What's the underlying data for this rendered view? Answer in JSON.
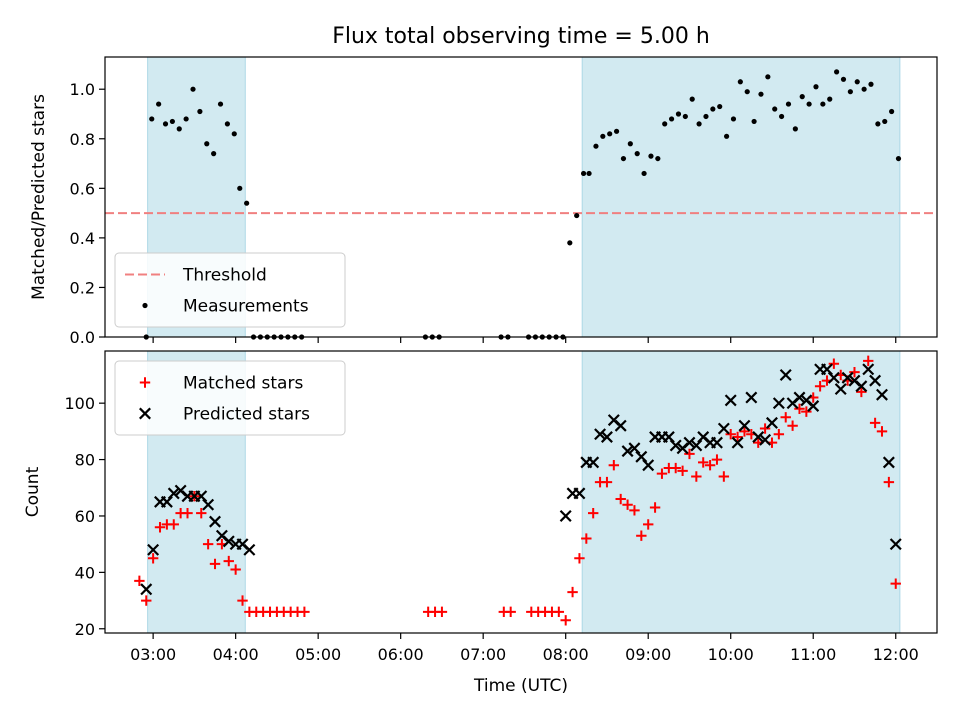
{
  "chart_data": {
    "title": "Flux total observing time = 5.00 h",
    "xlabel": "Time (UTC)",
    "x_ticks": [
      "03:00",
      "04:00",
      "05:00",
      "06:00",
      "07:00",
      "08:00",
      "09:00",
      "10:00",
      "11:00",
      "12:00"
    ],
    "x_range": [
      "02:25",
      "12:30"
    ],
    "shaded_intervals": [
      [
        "02:56",
        "04:07"
      ],
      [
        "08:12",
        "12:03"
      ]
    ],
    "shade_color": "#add8e6",
    "panels": [
      {
        "type": "scatter",
        "ylabel": "Matched/Predicted stars",
        "ylim": [
          0,
          1.13
        ],
        "yticks": [
          0.0,
          0.2,
          0.4,
          0.6,
          0.8,
          1.0
        ],
        "threshold": {
          "name": "Threshold",
          "value": 0.5,
          "color": "#f08080",
          "style": "dashed"
        },
        "legend_position": "lower-left",
        "series": [
          {
            "name": "Measurements",
            "color": "#000000",
            "marker": "dot",
            "points": [
              [
                "02:55",
                0.0
              ],
              [
                "02:59",
                0.88
              ],
              [
                "03:04",
                0.94
              ],
              [
                "03:09",
                0.86
              ],
              [
                "03:14",
                0.87
              ],
              [
                "03:19",
                0.84
              ],
              [
                "03:24",
                0.88
              ],
              [
                "03:29",
                1.0
              ],
              [
                "03:34",
                0.91
              ],
              [
                "03:39",
                0.78
              ],
              [
                "03:44",
                0.74
              ],
              [
                "03:49",
                0.94
              ],
              [
                "03:54",
                0.86
              ],
              [
                "03:59",
                0.82
              ],
              [
                "04:03",
                0.6
              ],
              [
                "04:08",
                0.54
              ],
              [
                "04:13",
                0.0
              ],
              [
                "04:18",
                0.0
              ],
              [
                "04:23",
                0.0
              ],
              [
                "04:28",
                0.0
              ],
              [
                "04:33",
                0.0
              ],
              [
                "04:38",
                0.0
              ],
              [
                "04:43",
                0.0
              ],
              [
                "04:48",
                0.0
              ],
              [
                "06:18",
                0.0
              ],
              [
                "06:23",
                0.0
              ],
              [
                "06:28",
                0.0
              ],
              [
                "07:13",
                0.0
              ],
              [
                "07:18",
                0.0
              ],
              [
                "07:33",
                0.0
              ],
              [
                "07:38",
                0.0
              ],
              [
                "07:43",
                0.0
              ],
              [
                "07:48",
                0.0
              ],
              [
                "07:53",
                0.0
              ],
              [
                "07:58",
                0.0
              ],
              [
                "08:03",
                0.38
              ],
              [
                "08:08",
                0.49
              ],
              [
                "08:13",
                0.66
              ],
              [
                "08:17",
                0.66
              ],
              [
                "08:22",
                0.77
              ],
              [
                "08:27",
                0.81
              ],
              [
                "08:32",
                0.82
              ],
              [
                "08:37",
                0.83
              ],
              [
                "08:42",
                0.72
              ],
              [
                "08:47",
                0.78
              ],
              [
                "08:52",
                0.74
              ],
              [
                "08:57",
                0.66
              ],
              [
                "09:02",
                0.73
              ],
              [
                "09:07",
                0.72
              ],
              [
                "09:12",
                0.86
              ],
              [
                "09:17",
                0.88
              ],
              [
                "09:22",
                0.9
              ],
              [
                "09:27",
                0.89
              ],
              [
                "09:32",
                0.96
              ],
              [
                "09:37",
                0.86
              ],
              [
                "09:42",
                0.89
              ],
              [
                "09:47",
                0.92
              ],
              [
                "09:52",
                0.93
              ],
              [
                "09:57",
                0.81
              ],
              [
                "10:02",
                0.88
              ],
              [
                "10:07",
                1.03
              ],
              [
                "10:12",
                0.99
              ],
              [
                "10:17",
                0.87
              ],
              [
                "10:22",
                0.98
              ],
              [
                "10:27",
                1.05
              ],
              [
                "10:32",
                0.92
              ],
              [
                "10:37",
                0.89
              ],
              [
                "10:42",
                0.94
              ],
              [
                "10:47",
                0.84
              ],
              [
                "10:52",
                0.97
              ],
              [
                "10:57",
                0.94
              ],
              [
                "11:02",
                1.01
              ],
              [
                "11:07",
                0.94
              ],
              [
                "11:12",
                0.96
              ],
              [
                "11:17",
                1.07
              ],
              [
                "11:22",
                1.04
              ],
              [
                "11:27",
                0.99
              ],
              [
                "11:32",
                1.03
              ],
              [
                "11:37",
                1.0
              ],
              [
                "11:42",
                1.02
              ],
              [
                "11:47",
                0.86
              ],
              [
                "11:52",
                0.87
              ],
              [
                "11:57",
                0.91
              ],
              [
                "12:02",
                0.72
              ]
            ]
          }
        ]
      },
      {
        "type": "scatter",
        "ylabel": "Count",
        "ylim": [
          18.5,
          118.5
        ],
        "yticks": [
          20,
          40,
          60,
          80,
          100
        ],
        "legend_position": "upper-left",
        "series": [
          {
            "name": "Matched stars",
            "color": "#ff0000",
            "marker": "plus",
            "points": [
              [
                "02:50",
                37
              ],
              [
                "02:55",
                30
              ],
              [
                "03:00",
                45
              ],
              [
                "03:05",
                56
              ],
              [
                "03:10",
                57
              ],
              [
                "03:15",
                57
              ],
              [
                "03:20",
                61
              ],
              [
                "03:25",
                61
              ],
              [
                "03:30",
                67
              ],
              [
                "03:35",
                61
              ],
              [
                "03:40",
                50
              ],
              [
                "03:45",
                43
              ],
              [
                "03:50",
                50
              ],
              [
                "03:55",
                44
              ],
              [
                "04:00",
                41
              ],
              [
                "04:05",
                30
              ],
              [
                "04:10",
                26
              ],
              [
                "04:15",
                26
              ],
              [
                "04:20",
                26
              ],
              [
                "04:25",
                26
              ],
              [
                "04:30",
                26
              ],
              [
                "04:35",
                26
              ],
              [
                "04:40",
                26
              ],
              [
                "04:45",
                26
              ],
              [
                "04:50",
                26
              ],
              [
                "06:20",
                26
              ],
              [
                "06:25",
                26
              ],
              [
                "06:30",
                26
              ],
              [
                "07:15",
                26
              ],
              [
                "07:20",
                26
              ],
              [
                "07:35",
                26
              ],
              [
                "07:40",
                26
              ],
              [
                "07:45",
                26
              ],
              [
                "07:50",
                26
              ],
              [
                "07:55",
                26
              ],
              [
                "08:00",
                23
              ],
              [
                "08:05",
                33
              ],
              [
                "08:10",
                45
              ],
              [
                "08:15",
                52
              ],
              [
                "08:20",
                61
              ],
              [
                "08:25",
                72
              ],
              [
                "08:30",
                72
              ],
              [
                "08:35",
                78
              ],
              [
                "08:40",
                66
              ],
              [
                "08:45",
                64
              ],
              [
                "08:50",
                62
              ],
              [
                "08:55",
                53
              ],
              [
                "09:00",
                57
              ],
              [
                "09:05",
                63
              ],
              [
                "09:10",
                75
              ],
              [
                "09:15",
                77
              ],
              [
                "09:20",
                77
              ],
              [
                "09:25",
                76
              ],
              [
                "09:30",
                82
              ],
              [
                "09:35",
                74
              ],
              [
                "09:40",
                79
              ],
              [
                "09:45",
                78
              ],
              [
                "09:50",
                80
              ],
              [
                "09:55",
                74
              ],
              [
                "10:00",
                89
              ],
              [
                "10:05",
                88
              ],
              [
                "10:10",
                90
              ],
              [
                "10:15",
                89
              ],
              [
                "10:20",
                86
              ],
              [
                "10:25",
                91
              ],
              [
                "10:30",
                86
              ],
              [
                "10:35",
                89
              ],
              [
                "10:40",
                95
              ],
              [
                "10:45",
                92
              ],
              [
                "10:50",
                98
              ],
              [
                "10:55",
                97
              ],
              [
                "11:00",
                102
              ],
              [
                "11:05",
                106
              ],
              [
                "11:10",
                108
              ],
              [
                "11:15",
                114
              ],
              [
                "11:20",
                110
              ],
              [
                "11:25",
                108
              ],
              [
                "11:30",
                111
              ],
              [
                "11:35",
                104
              ],
              [
                "11:40",
                115
              ],
              [
                "11:45",
                93
              ],
              [
                "11:50",
                90
              ],
              [
                "11:55",
                72
              ],
              [
                "12:00",
                36
              ]
            ]
          },
          {
            "name": "Predicted stars",
            "color": "#000000",
            "marker": "x",
            "points": [
              [
                "02:55",
                34
              ],
              [
                "03:00",
                48
              ],
              [
                "03:05",
                65
              ],
              [
                "03:10",
                65
              ],
              [
                "03:15",
                68
              ],
              [
                "03:20",
                69
              ],
              [
                "03:25",
                67
              ],
              [
                "03:30",
                67
              ],
              [
                "03:35",
                67
              ],
              [
                "03:40",
                64
              ],
              [
                "03:45",
                58
              ],
              [
                "03:50",
                53
              ],
              [
                "03:55",
                51
              ],
              [
                "04:00",
                50
              ],
              [
                "04:05",
                50
              ],
              [
                "04:10",
                48
              ],
              [
                "08:00",
                60
              ],
              [
                "08:05",
                68
              ],
              [
                "08:10",
                68
              ],
              [
                "08:15",
                79
              ],
              [
                "08:20",
                79
              ],
              [
                "08:25",
                89
              ],
              [
                "08:30",
                88
              ],
              [
                "08:35",
                94
              ],
              [
                "08:40",
                92
              ],
              [
                "08:45",
                83
              ],
              [
                "08:50",
                84
              ],
              [
                "08:55",
                81
              ],
              [
                "09:00",
                78
              ],
              [
                "09:05",
                88
              ],
              [
                "09:10",
                88
              ],
              [
                "09:15",
                88
              ],
              [
                "09:20",
                85
              ],
              [
                "09:25",
                84
              ],
              [
                "09:30",
                86
              ],
              [
                "09:35",
                85
              ],
              [
                "09:40",
                88
              ],
              [
                "09:45",
                86
              ],
              [
                "09:50",
                86
              ],
              [
                "09:55",
                91
              ],
              [
                "10:00",
                101
              ],
              [
                "10:05",
                86
              ],
              [
                "10:10",
                92
              ],
              [
                "10:15",
                102
              ],
              [
                "10:20",
                88
              ],
              [
                "10:25",
                87
              ],
              [
                "10:30",
                93
              ],
              [
                "10:35",
                100
              ],
              [
                "10:40",
                110
              ],
              [
                "10:45",
                100
              ],
              [
                "10:50",
                102
              ],
              [
                "10:55",
                101
              ],
              [
                "11:00",
                99
              ],
              [
                "11:05",
                112
              ],
              [
                "11:10",
                112
              ],
              [
                "11:15",
                109
              ],
              [
                "11:20",
                105
              ],
              [
                "11:25",
                109
              ],
              [
                "11:30",
                108
              ],
              [
                "11:35",
                106
              ],
              [
                "11:40",
                112
              ],
              [
                "11:45",
                108
              ],
              [
                "11:50",
                103
              ],
              [
                "11:55",
                79
              ],
              [
                "12:00",
                50
              ]
            ]
          }
        ]
      }
    ]
  }
}
